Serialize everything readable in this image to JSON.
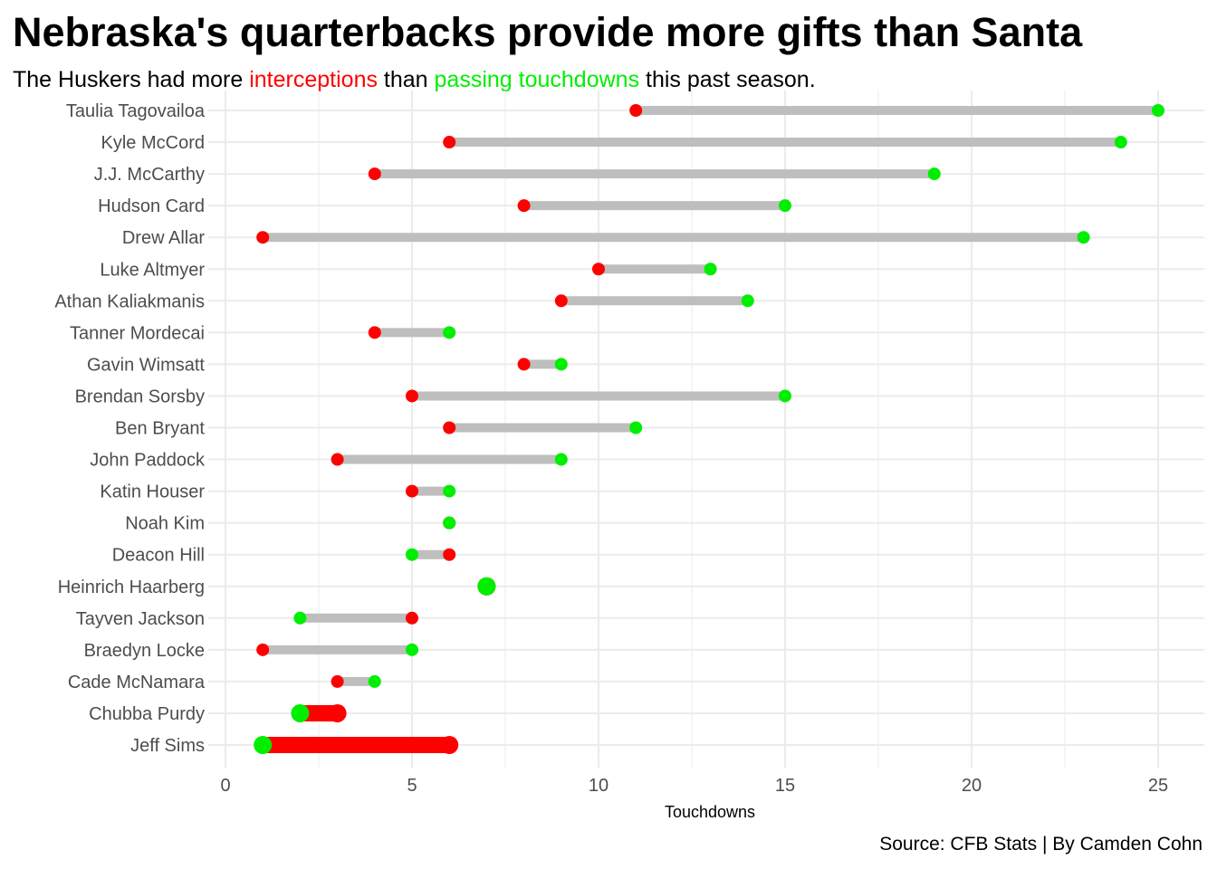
{
  "chart_data": {
    "type": "dumbbell",
    "title": "Nebraska's quarterbacks provide more gifts than Santa",
    "subtitle": {
      "before": "The Huskers had more ",
      "highlight_red": "interceptions",
      "middle": " than ",
      "highlight_green": "passing touchdowns",
      "after": " this past season."
    },
    "xlabel": "Touchdowns",
    "ylabel": "",
    "xlim": [
      0,
      25
    ],
    "xticks": [
      0,
      5,
      10,
      15,
      20,
      25
    ],
    "grid": true,
    "caption": "Source: CFB Stats | By Camden Cohn",
    "colors": {
      "interceptions": "#ff0000",
      "touchdowns": "#00ee00",
      "segment": "#bebebe",
      "grid": "#ebebeb",
      "tick_text": "#4d4d4d"
    },
    "series_keys": [
      "interceptions",
      "touchdowns"
    ],
    "highlighted_players": [
      "Heinrich Haarberg",
      "Chubba Purdy",
      "Jeff Sims"
    ],
    "players": [
      {
        "name": "Taulia Tagovailoa",
        "interceptions": 11,
        "touchdowns": 25
      },
      {
        "name": "Kyle McCord",
        "interceptions": 6,
        "touchdowns": 24
      },
      {
        "name": "J.J. McCarthy",
        "interceptions": 4,
        "touchdowns": 19
      },
      {
        "name": "Hudson Card",
        "interceptions": 8,
        "touchdowns": 15
      },
      {
        "name": "Drew Allar",
        "interceptions": 1,
        "touchdowns": 23
      },
      {
        "name": "Luke Altmyer",
        "interceptions": 10,
        "touchdowns": 13
      },
      {
        "name": "Athan Kaliakmanis",
        "interceptions": 9,
        "touchdowns": 14
      },
      {
        "name": "Tanner Mordecai",
        "interceptions": 4,
        "touchdowns": 6
      },
      {
        "name": "Gavin Wimsatt",
        "interceptions": 8,
        "touchdowns": 9
      },
      {
        "name": "Brendan Sorsby",
        "interceptions": 5,
        "touchdowns": 15
      },
      {
        "name": "Ben Bryant",
        "interceptions": 6,
        "touchdowns": 11
      },
      {
        "name": "John Paddock",
        "interceptions": 3,
        "touchdowns": 9
      },
      {
        "name": "Katin Houser",
        "interceptions": 5,
        "touchdowns": 6
      },
      {
        "name": "Noah Kim",
        "interceptions": 6,
        "touchdowns": 6
      },
      {
        "name": "Deacon Hill",
        "interceptions": 6,
        "touchdowns": 5
      },
      {
        "name": "Heinrich Haarberg",
        "interceptions": 7,
        "touchdowns": 7
      },
      {
        "name": "Tayven Jackson",
        "interceptions": 5,
        "touchdowns": 2
      },
      {
        "name": "Braedyn Locke",
        "interceptions": 1,
        "touchdowns": 5
      },
      {
        "name": "Cade McNamara",
        "interceptions": 3,
        "touchdowns": 4
      },
      {
        "name": "Chubba Purdy",
        "interceptions": 3,
        "touchdowns": 2
      },
      {
        "name": "Jeff Sims",
        "interceptions": 6,
        "touchdowns": 1
      }
    ]
  }
}
